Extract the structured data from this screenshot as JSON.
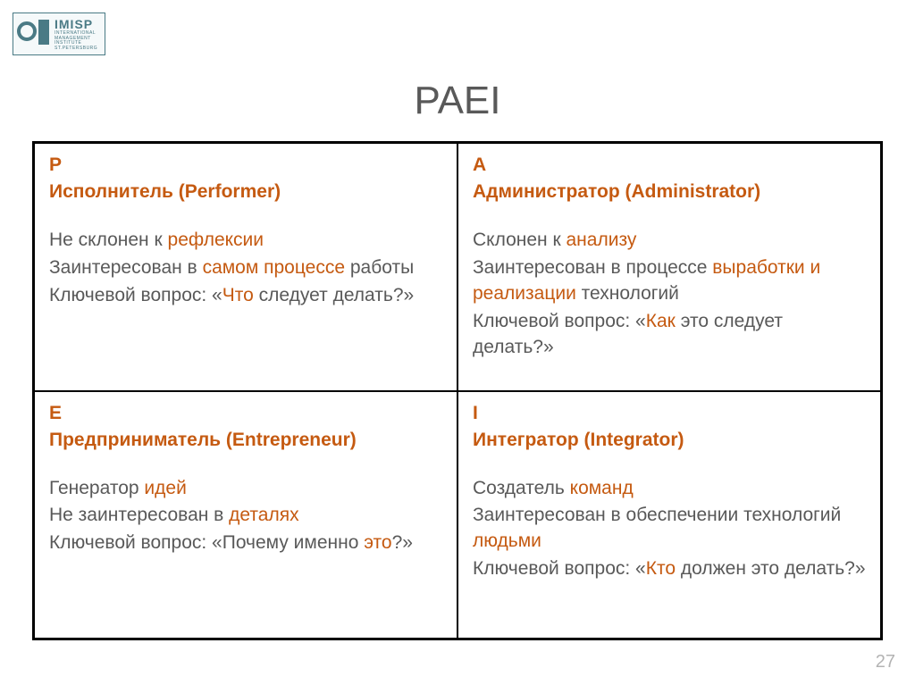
{
  "logo": {
    "name": "IMISP",
    "sub1": "INTERNATIONAL",
    "sub2": "MANAGEMENT",
    "sub3": "INSTITUTE",
    "sub4": "ST.PETERSBURG"
  },
  "title": "PAEI",
  "page_number": "27",
  "colors": {
    "accent": "#c55a11",
    "text": "#595959",
    "border": "#000000",
    "teal": "#4a7a85",
    "pagenum": "#b3b3b3",
    "background": "#ffffff"
  },
  "typography": {
    "title_fontsize": 44,
    "cell_letter_fontsize": 21,
    "cell_role_fontsize": 21,
    "desc_fontsize": 21,
    "pagenum_fontsize": 20
  },
  "cells": {
    "p": {
      "letter": "P",
      "role": "Исполнитель (Performer)",
      "line1_a": "Не склонен к ",
      "line1_hl": "рефлексии",
      "line2_a": "Заинтересован в ",
      "line2_hl": "самом процессе",
      "line2_b": " работы",
      "line3_a": "Ключевой вопрос: «",
      "line3_hl": "Что",
      "line3_b": " следует делать?»"
    },
    "a": {
      "letter": "A",
      "role": "Администратор (Administrator)",
      "line1_a": "Склонен к ",
      "line1_hl": "анализу",
      "line2_a": "Заинтересован в процессе ",
      "line2_hl": "выработки и реализации",
      "line2_b": " технологий",
      "line3_a": "Ключевой вопрос: «",
      "line3_hl": "Как",
      "line3_b": " это следует делать?»"
    },
    "e": {
      "letter": "E",
      "role": "Предприниматель (Entrepreneur)",
      "line1_a": "Генератор ",
      "line1_hl": "идей",
      "line2_a": "Не заинтересован в ",
      "line2_hl": "деталях",
      "line3_a": "Ключевой вопрос: «Почему именно ",
      "line3_hl": "это",
      "line3_b": "?»"
    },
    "i": {
      "letter": "I",
      "role": "Интегратор (Integrator)",
      "line1_a": "Создатель ",
      "line1_hl": "команд",
      "line2_a": "Заинтересован в обеспечении технологий ",
      "line2_hl": "людьми",
      "line3_a": "Ключевой вопрос: «",
      "line3_hl": "Кто",
      "line3_b": " должен это делать?»"
    }
  }
}
